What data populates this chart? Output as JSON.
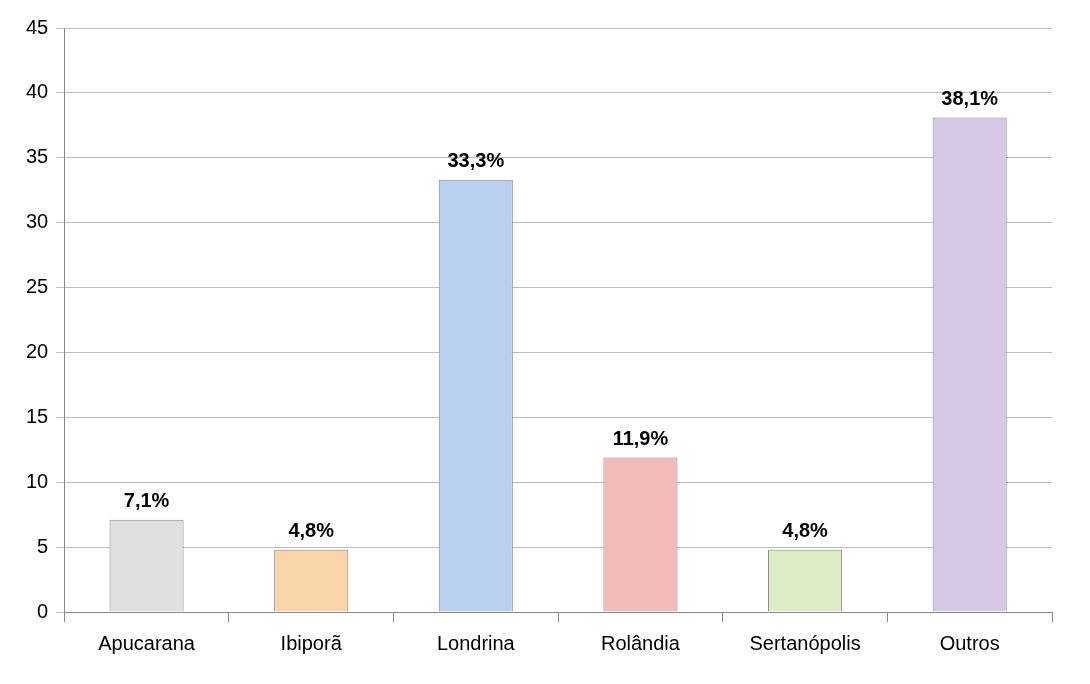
{
  "chart_data": {
    "type": "bar",
    "categories": [
      "Apucarana",
      "Ibiporã",
      "Londrina",
      "Rolândia",
      "Sertanópolis",
      "Outros"
    ],
    "values": [
      7.1,
      4.8,
      33.3,
      11.9,
      4.8,
      38.1
    ],
    "colors": [
      "#e0e0e0",
      "#fad4aa",
      "#b9d1ef",
      "#f2baba",
      "#ddecc2",
      "#d6c9e6"
    ],
    "value_labels": [
      "7,1%",
      "4,8%",
      "33,3%",
      "11,9%",
      "4,8%",
      "38,1%"
    ],
    "ylim": [
      0,
      45
    ],
    "yticks": [
      0,
      5,
      10,
      15,
      20,
      25,
      30,
      35,
      40,
      45
    ],
    "grid": "y",
    "legend": false
  }
}
